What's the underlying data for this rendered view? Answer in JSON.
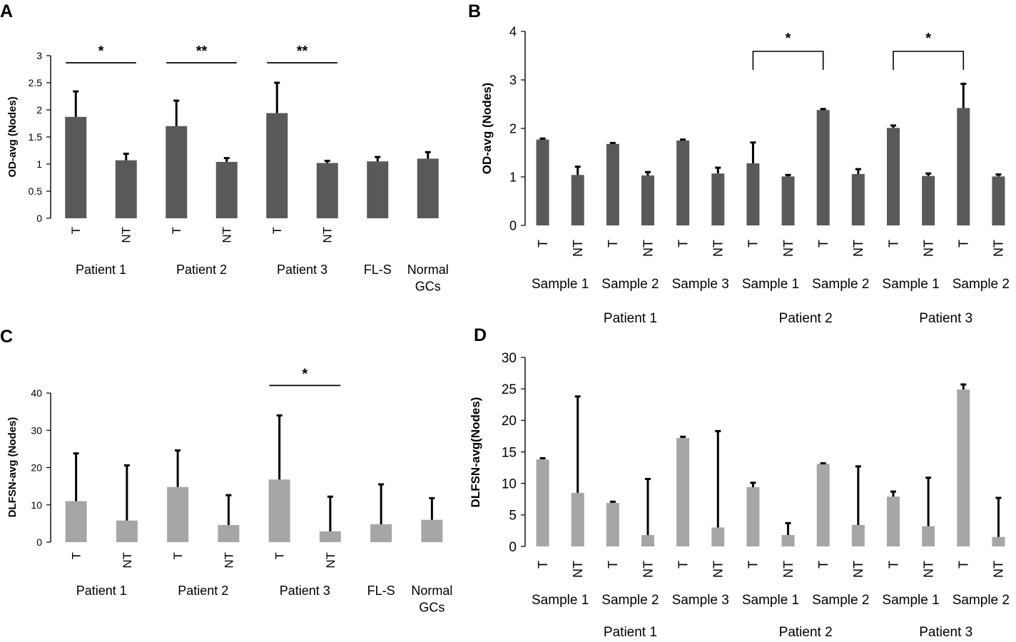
{
  "colors": {
    "dark_bar": "#595959",
    "light_bar": "#a6a6a6",
    "axis": "#000000",
    "error_bar": "#000000"
  },
  "chart_data": [
    {
      "panel": "A",
      "type": "bar",
      "ylabel": "OD-avg (Nodes)",
      "ylim": [
        0,
        3
      ],
      "yticks": [
        0,
        0.5,
        1,
        1.5,
        2,
        2.5,
        3
      ],
      "ytick_labels": [
        "0",
        "0.5",
        "1",
        "1.5",
        "2",
        "2.5",
        "3"
      ],
      "categories": [
        "T",
        "NT",
        "T",
        "NT",
        "T",
        "NT",
        "",
        ""
      ],
      "values": [
        1.87,
        1.07,
        1.7,
        1.04,
        1.94,
        1.02,
        1.05,
        1.1
      ],
      "errors": [
        0.47,
        0.12,
        0.47,
        0.07,
        0.56,
        0.04,
        0.08,
        0.12
      ],
      "groups": [
        {
          "label": "Patient 1",
          "start": 0,
          "end": 1
        },
        {
          "label": "Patient 2",
          "start": 2,
          "end": 3
        },
        {
          "label": "Patient 3",
          "start": 4,
          "end": 5
        },
        {
          "label": "FL-S",
          "start": 6,
          "end": 6
        },
        {
          "label": "Normal\nGCs",
          "start": 7,
          "end": 7
        }
      ],
      "significance": [
        {
          "from": 0,
          "to": 1,
          "label": "*",
          "style": "line"
        },
        {
          "from": 2,
          "to": 3,
          "label": "**",
          "style": "line"
        },
        {
          "from": 4,
          "to": 5,
          "label": "**",
          "style": "line"
        }
      ]
    },
    {
      "panel": "B",
      "type": "bar",
      "ylabel": "OD-avg (Nodes)",
      "ylim": [
        0,
        4
      ],
      "yticks": [
        0,
        1,
        2,
        3,
        4
      ],
      "ytick_labels": [
        "0",
        "1",
        "2",
        "3",
        "4"
      ],
      "categories": [
        "T",
        "NT",
        "T",
        "NT",
        "T",
        "NT",
        "T",
        "NT",
        "T",
        "NT",
        "T",
        "NT",
        "T",
        "NT"
      ],
      "values": [
        1.77,
        1.04,
        1.68,
        1.03,
        1.75,
        1.07,
        1.28,
        1.01,
        2.38,
        1.06,
        2.01,
        1.02,
        2.42,
        1.01
      ],
      "errors": [
        0.02,
        0.17,
        0.02,
        0.07,
        0.02,
        0.12,
        0.43,
        0.03,
        0.02,
        0.1,
        0.05,
        0.05,
        0.5,
        0.04
      ],
      "sample_groups": [
        {
          "label": "Sample 1",
          "start": 0,
          "end": 1
        },
        {
          "label": "Sample 2",
          "start": 2,
          "end": 3
        },
        {
          "label": "Sample 3",
          "start": 4,
          "end": 5
        },
        {
          "label": "Sample 1",
          "start": 6,
          "end": 7
        },
        {
          "label": "Sample 2",
          "start": 8,
          "end": 9
        },
        {
          "label": "Sample 1",
          "start": 10,
          "end": 11
        },
        {
          "label": "Sample 2",
          "start": 12,
          "end": 13
        }
      ],
      "groups": [
        {
          "label": "Patient 1",
          "start": 0,
          "end": 5
        },
        {
          "label": "Patient 2",
          "start": 6,
          "end": 9
        },
        {
          "label": "Patient 3",
          "start": 10,
          "end": 13
        }
      ],
      "significance": [
        {
          "from": 6,
          "to": 8,
          "label": "*",
          "style": "bracket"
        },
        {
          "from": 10,
          "to": 12,
          "label": "*",
          "style": "bracket"
        }
      ]
    },
    {
      "panel": "C",
      "type": "bar",
      "ylabel": "DLFSN-avg (Nodes)",
      "ylim": [
        0,
        40
      ],
      "yticks": [
        0,
        10,
        20,
        30,
        40
      ],
      "ytick_labels": [
        "0",
        "10",
        "20",
        "30",
        "40"
      ],
      "categories": [
        "T",
        "NT",
        "T",
        "NT",
        "T",
        "NT",
        "",
        ""
      ],
      "values": [
        11,
        5.8,
        14.8,
        4.6,
        16.8,
        2.9,
        4.8,
        6
      ],
      "errors": [
        12.8,
        14.8,
        9.8,
        8,
        17.2,
        9.3,
        10.7,
        5.8
      ],
      "groups": [
        {
          "label": "Patient 1",
          "start": 0,
          "end": 1
        },
        {
          "label": "Patient 2",
          "start": 2,
          "end": 3
        },
        {
          "label": "Patient 3",
          "start": 4,
          "end": 5
        },
        {
          "label": "FL-S",
          "start": 6,
          "end": 6
        },
        {
          "label": "Normal\nGCs",
          "start": 7,
          "end": 7
        }
      ],
      "significance": [
        {
          "from": 4,
          "to": 5,
          "label": "*",
          "style": "line"
        }
      ]
    },
    {
      "panel": "D",
      "type": "bar",
      "ylabel": "DLFSN-avg(Nodes)",
      "ylim": [
        0,
        30
      ],
      "yticks": [
        0,
        5,
        10,
        15,
        20,
        25,
        30
      ],
      "ytick_labels": [
        "0",
        "5",
        "10",
        "15",
        "20",
        "25",
        "30"
      ],
      "categories": [
        "T",
        "NT",
        "T",
        "NT",
        "T",
        "NT",
        "T",
        "NT",
        "T",
        "NT",
        "T",
        "NT",
        "T",
        "NT"
      ],
      "values": [
        13.8,
        8.5,
        6.9,
        1.8,
        17.2,
        3,
        9.4,
        1.8,
        13.1,
        3.4,
        7.9,
        3.2,
        24.9,
        1.5
      ],
      "errors": [
        0.2,
        15.3,
        0.2,
        8.9,
        0.2,
        15.3,
        0.7,
        1.9,
        0.1,
        9.3,
        0.8,
        7.7,
        0.8,
        6.2
      ],
      "sample_groups": [
        {
          "label": "Sample 1",
          "start": 0,
          "end": 1
        },
        {
          "label": "Sample 2",
          "start": 2,
          "end": 3
        },
        {
          "label": "Sample 3",
          "start": 4,
          "end": 5
        },
        {
          "label": "Sample 1",
          "start": 6,
          "end": 7
        },
        {
          "label": "Sample 2",
          "start": 8,
          "end": 9
        },
        {
          "label": "Sample 1",
          "start": 10,
          "end": 11
        },
        {
          "label": "Sample 2",
          "start": 12,
          "end": 13
        }
      ],
      "groups": [
        {
          "label": "Patient 1",
          "start": 0,
          "end": 5
        },
        {
          "label": "Patient 2",
          "start": 6,
          "end": 9
        },
        {
          "label": "Patient 3",
          "start": 10,
          "end": 13
        }
      ],
      "significance": []
    }
  ]
}
